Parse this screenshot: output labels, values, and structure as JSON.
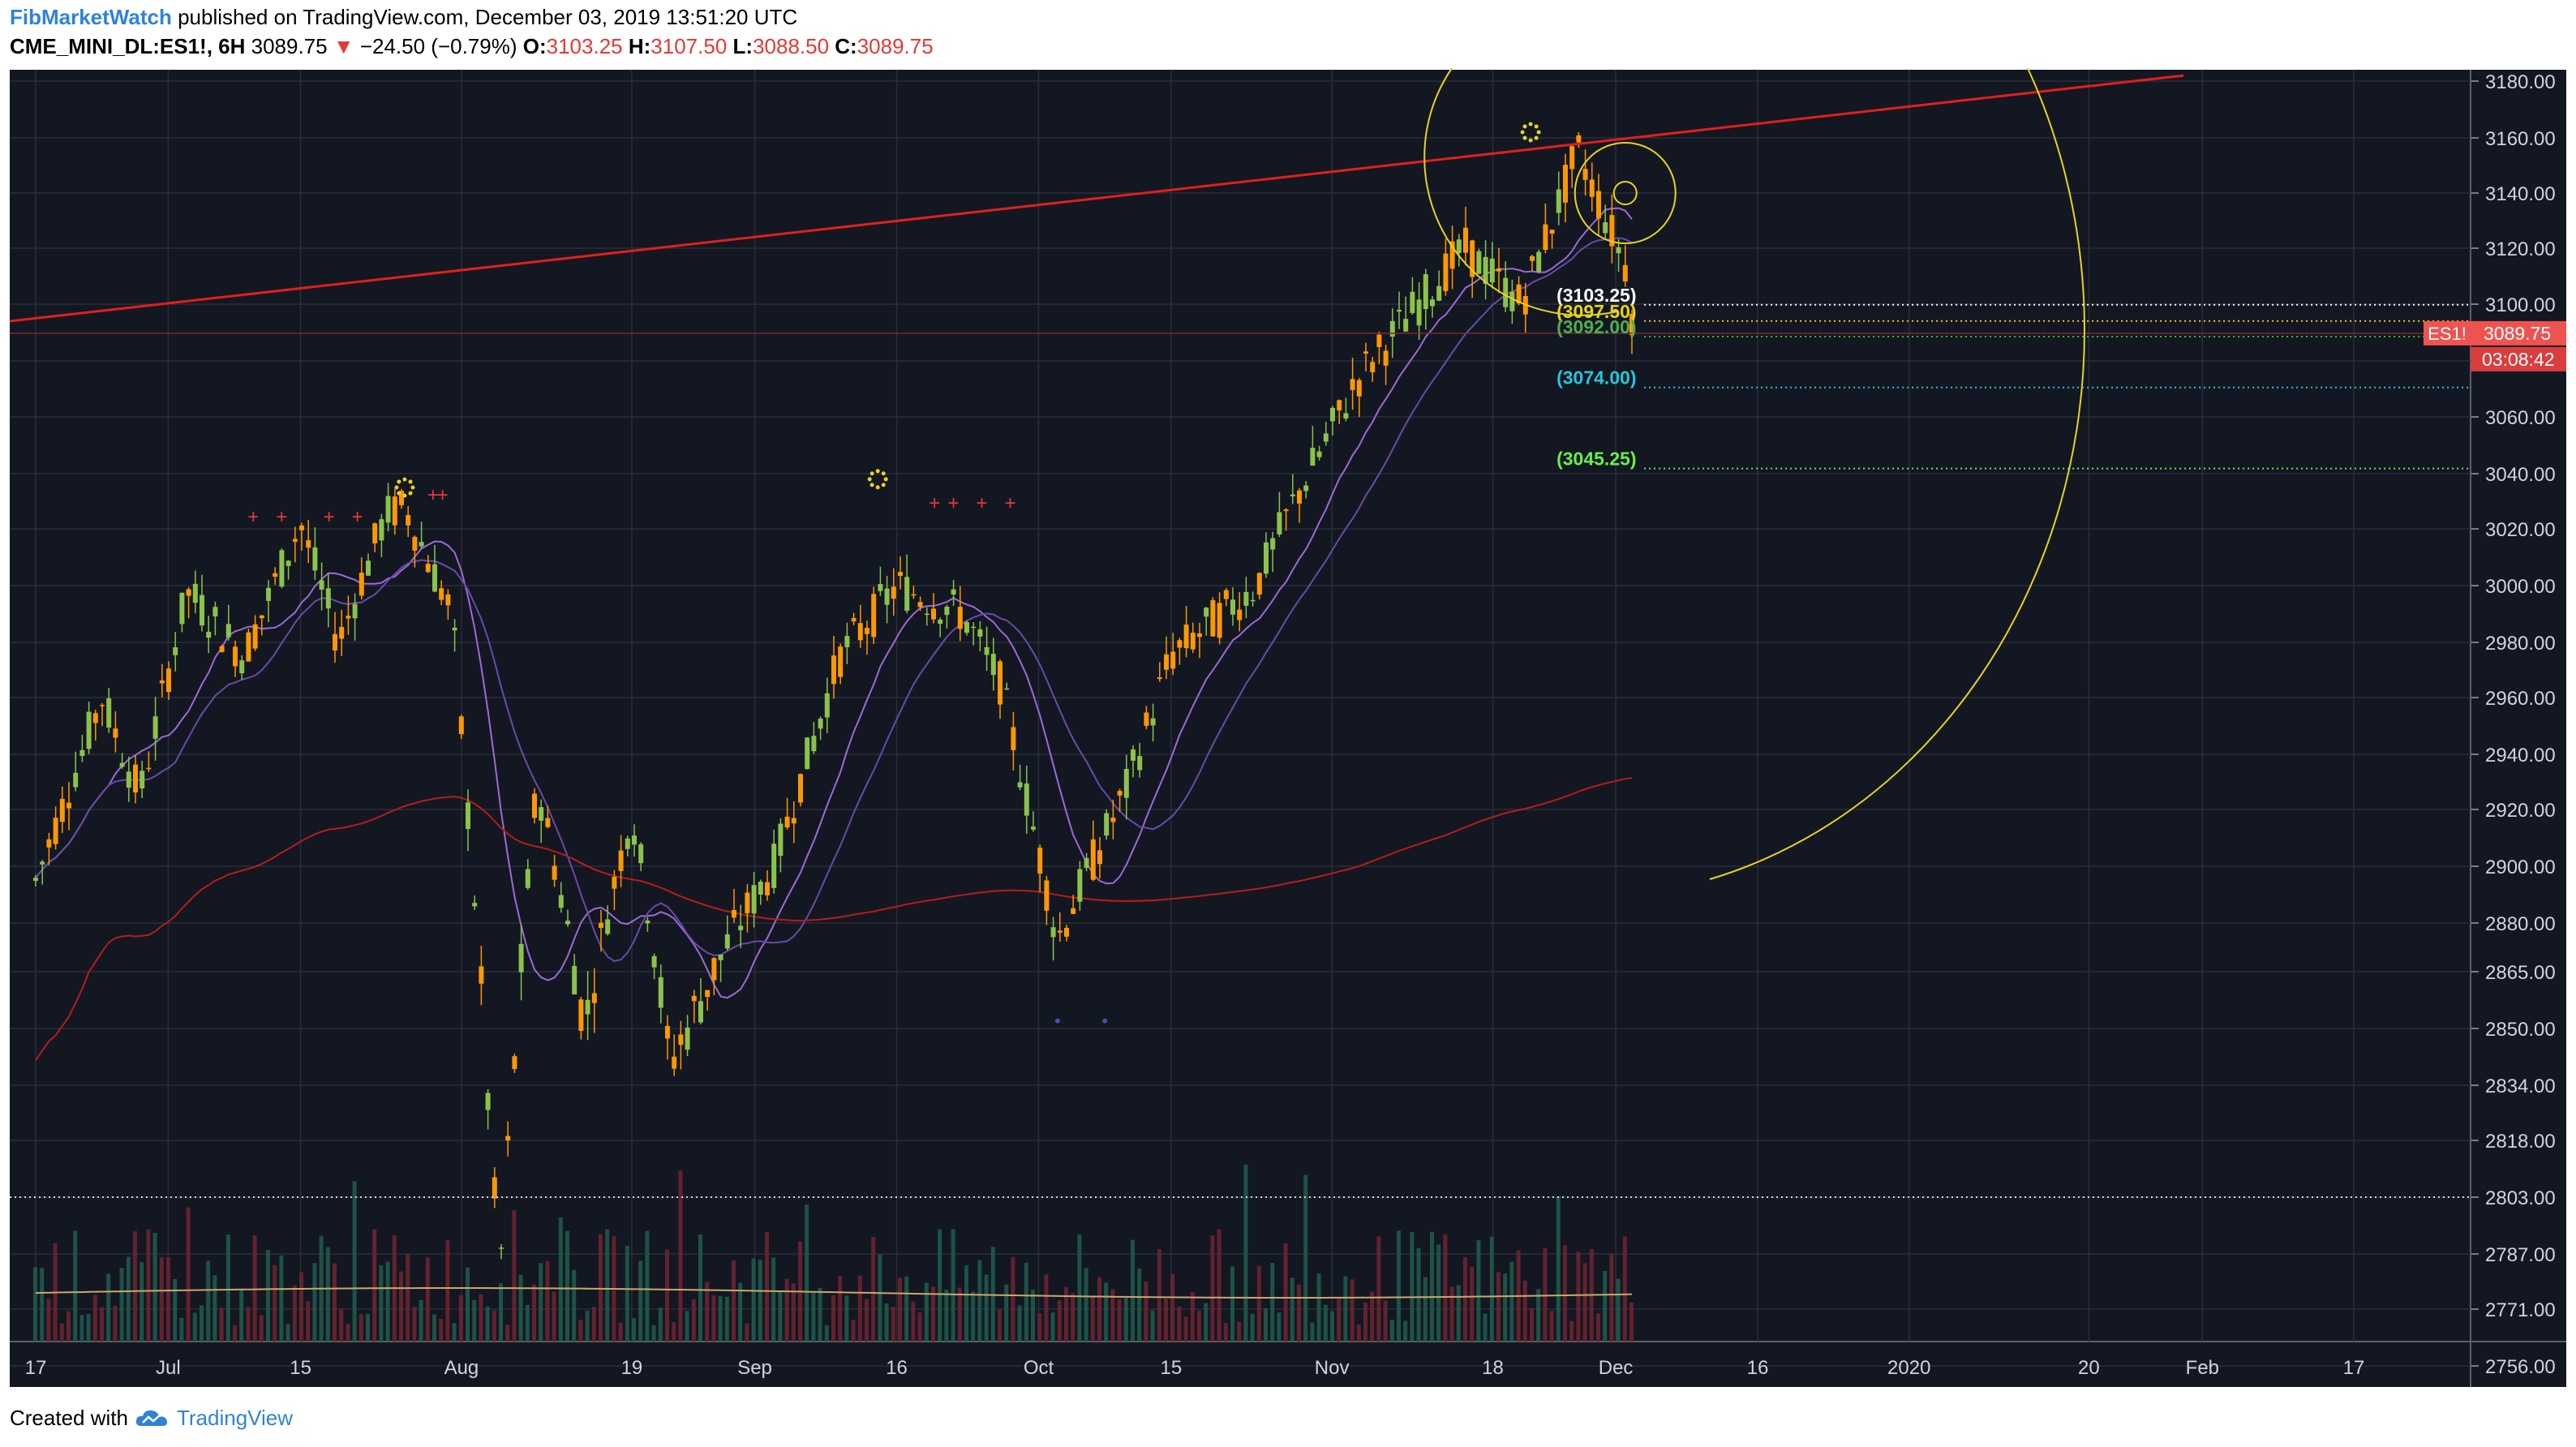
{
  "header": {
    "author": "FibMarketWatch",
    "published_text": "published on TradingView.com, December 03, 2019 13:51:20 UTC",
    "symbol_line": "CME_MINI_DL:ES1!, 6H",
    "last": "3089.75",
    "change_arrow": "▼",
    "change": "−24.50 (−0.79%)",
    "o_label": "O:",
    "o_value": "3103.25",
    "h_label": "H:",
    "h_value": "3107.50",
    "l_label": "L:",
    "l_value": "3088.50",
    "c_label": "C:",
    "c_value": "3089.75"
  },
  "footer": {
    "created_with": "Created with",
    "brand": "TradingView"
  },
  "colors": {
    "background": "#131722",
    "grid": "#2a2e39",
    "up": "#8bc34a",
    "down": "#ff9800",
    "trendline": "#e0201b",
    "fib_circle": "#e8d31d",
    "ma_long": "#b71c1c",
    "ma_short": "#7e57c2",
    "price_badge": "#ef5350"
  },
  "chart_data": {
    "type": "candlestick",
    "timeframe": "6H",
    "symbol": "ES1!",
    "y_axis_ticks": [
      "3180.00",
      "3160.00",
      "3140.00",
      "3120.00",
      "3100.00",
      "3080.00",
      "3060.00",
      "3040.00",
      "3020.00",
      "3000.00",
      "2980.00",
      "2960.00",
      "2940.00",
      "2920.00",
      "2900.00",
      "2880.00",
      "2865.00",
      "2850.00",
      "2834.00",
      "2818.00",
      "2803.00",
      "2787.00",
      "2771.00",
      "2756.00"
    ],
    "x_axis_ticks": [
      "17",
      "Jul",
      "15",
      "Aug",
      "19",
      "Sep",
      "16",
      "Oct",
      "15",
      "Nov",
      "18",
      "Dec",
      "16",
      "2020",
      "20",
      "Feb",
      "17"
    ],
    "last_price_label": "3089.75",
    "symbol_badge": "ES1!",
    "countdown": "03:08:42",
    "price_path": [
      {
        "date": "2019-06-17",
        "close": 2895
      },
      {
        "date": "2019-06-24",
        "close": 2960
      },
      {
        "date": "2019-06-28",
        "close": 2925
      },
      {
        "date": "2019-07-03",
        "close": 2998
      },
      {
        "date": "2019-07-09",
        "close": 2975
      },
      {
        "date": "2019-07-15",
        "close": 3022
      },
      {
        "date": "2019-07-19",
        "close": 2980
      },
      {
        "date": "2019-07-24",
        "close": 3025
      },
      {
        "date": "2019-07-26",
        "close": 3028
      },
      {
        "date": "2019-07-31",
        "close": 2990
      },
      {
        "date": "2019-08-05",
        "close": 2780
      },
      {
        "date": "2019-08-09",
        "close": 2930
      },
      {
        "date": "2019-08-14",
        "close": 2850
      },
      {
        "date": "2019-08-19",
        "close": 2920
      },
      {
        "date": "2019-08-23",
        "close": 2840
      },
      {
        "date": "2019-09-03",
        "close": 2900
      },
      {
        "date": "2019-09-10",
        "close": 2975
      },
      {
        "date": "2019-09-16",
        "close": 3000
      },
      {
        "date": "2019-09-23",
        "close": 2990
      },
      {
        "date": "2019-09-27",
        "close": 2965
      },
      {
        "date": "2019-10-03",
        "close": 2875
      },
      {
        "date": "2019-10-10",
        "close": 2925
      },
      {
        "date": "2019-10-15",
        "close": 2975
      },
      {
        "date": "2019-10-24",
        "close": 3000
      },
      {
        "date": "2019-10-28",
        "close": 3030
      },
      {
        "date": "2019-11-04",
        "close": 3075
      },
      {
        "date": "2019-11-15",
        "close": 3120
      },
      {
        "date": "2019-11-21",
        "close": 3100
      },
      {
        "date": "2019-11-27",
        "close": 3155
      },
      {
        "date": "2019-12-02",
        "close": 3114
      },
      {
        "date": "2019-12-03",
        "close": 3089.75
      }
    ],
    "level_labels": [
      {
        "label": "(3103.25)",
        "price": 3103.25,
        "color": "#ffffff"
      },
      {
        "label": "(3097.50)",
        "price": 3097.5,
        "color": "#e8d31d"
      },
      {
        "label": "(3092.00)",
        "price": 3092.0,
        "color": "#4caf50"
      },
      {
        "label": "(3074.00)",
        "price": 3074.0,
        "color": "#26c6da"
      },
      {
        "label": "(3045.25)",
        "price": 3045.25,
        "color": "#69f04a"
      }
    ],
    "reference_line": {
      "price": 2803.0,
      "style": "dotted"
    },
    "trendline": {
      "from": {
        "date": "2019-06-15",
        "price": 3090
      },
      "to": {
        "date": "2020-01-30",
        "price": 3182
      }
    },
    "markers": {
      "plus_signs": "+",
      "dot_circles": [
        "2019-07-26",
        "2019-09-14",
        "2019-11-22"
      ]
    }
  }
}
